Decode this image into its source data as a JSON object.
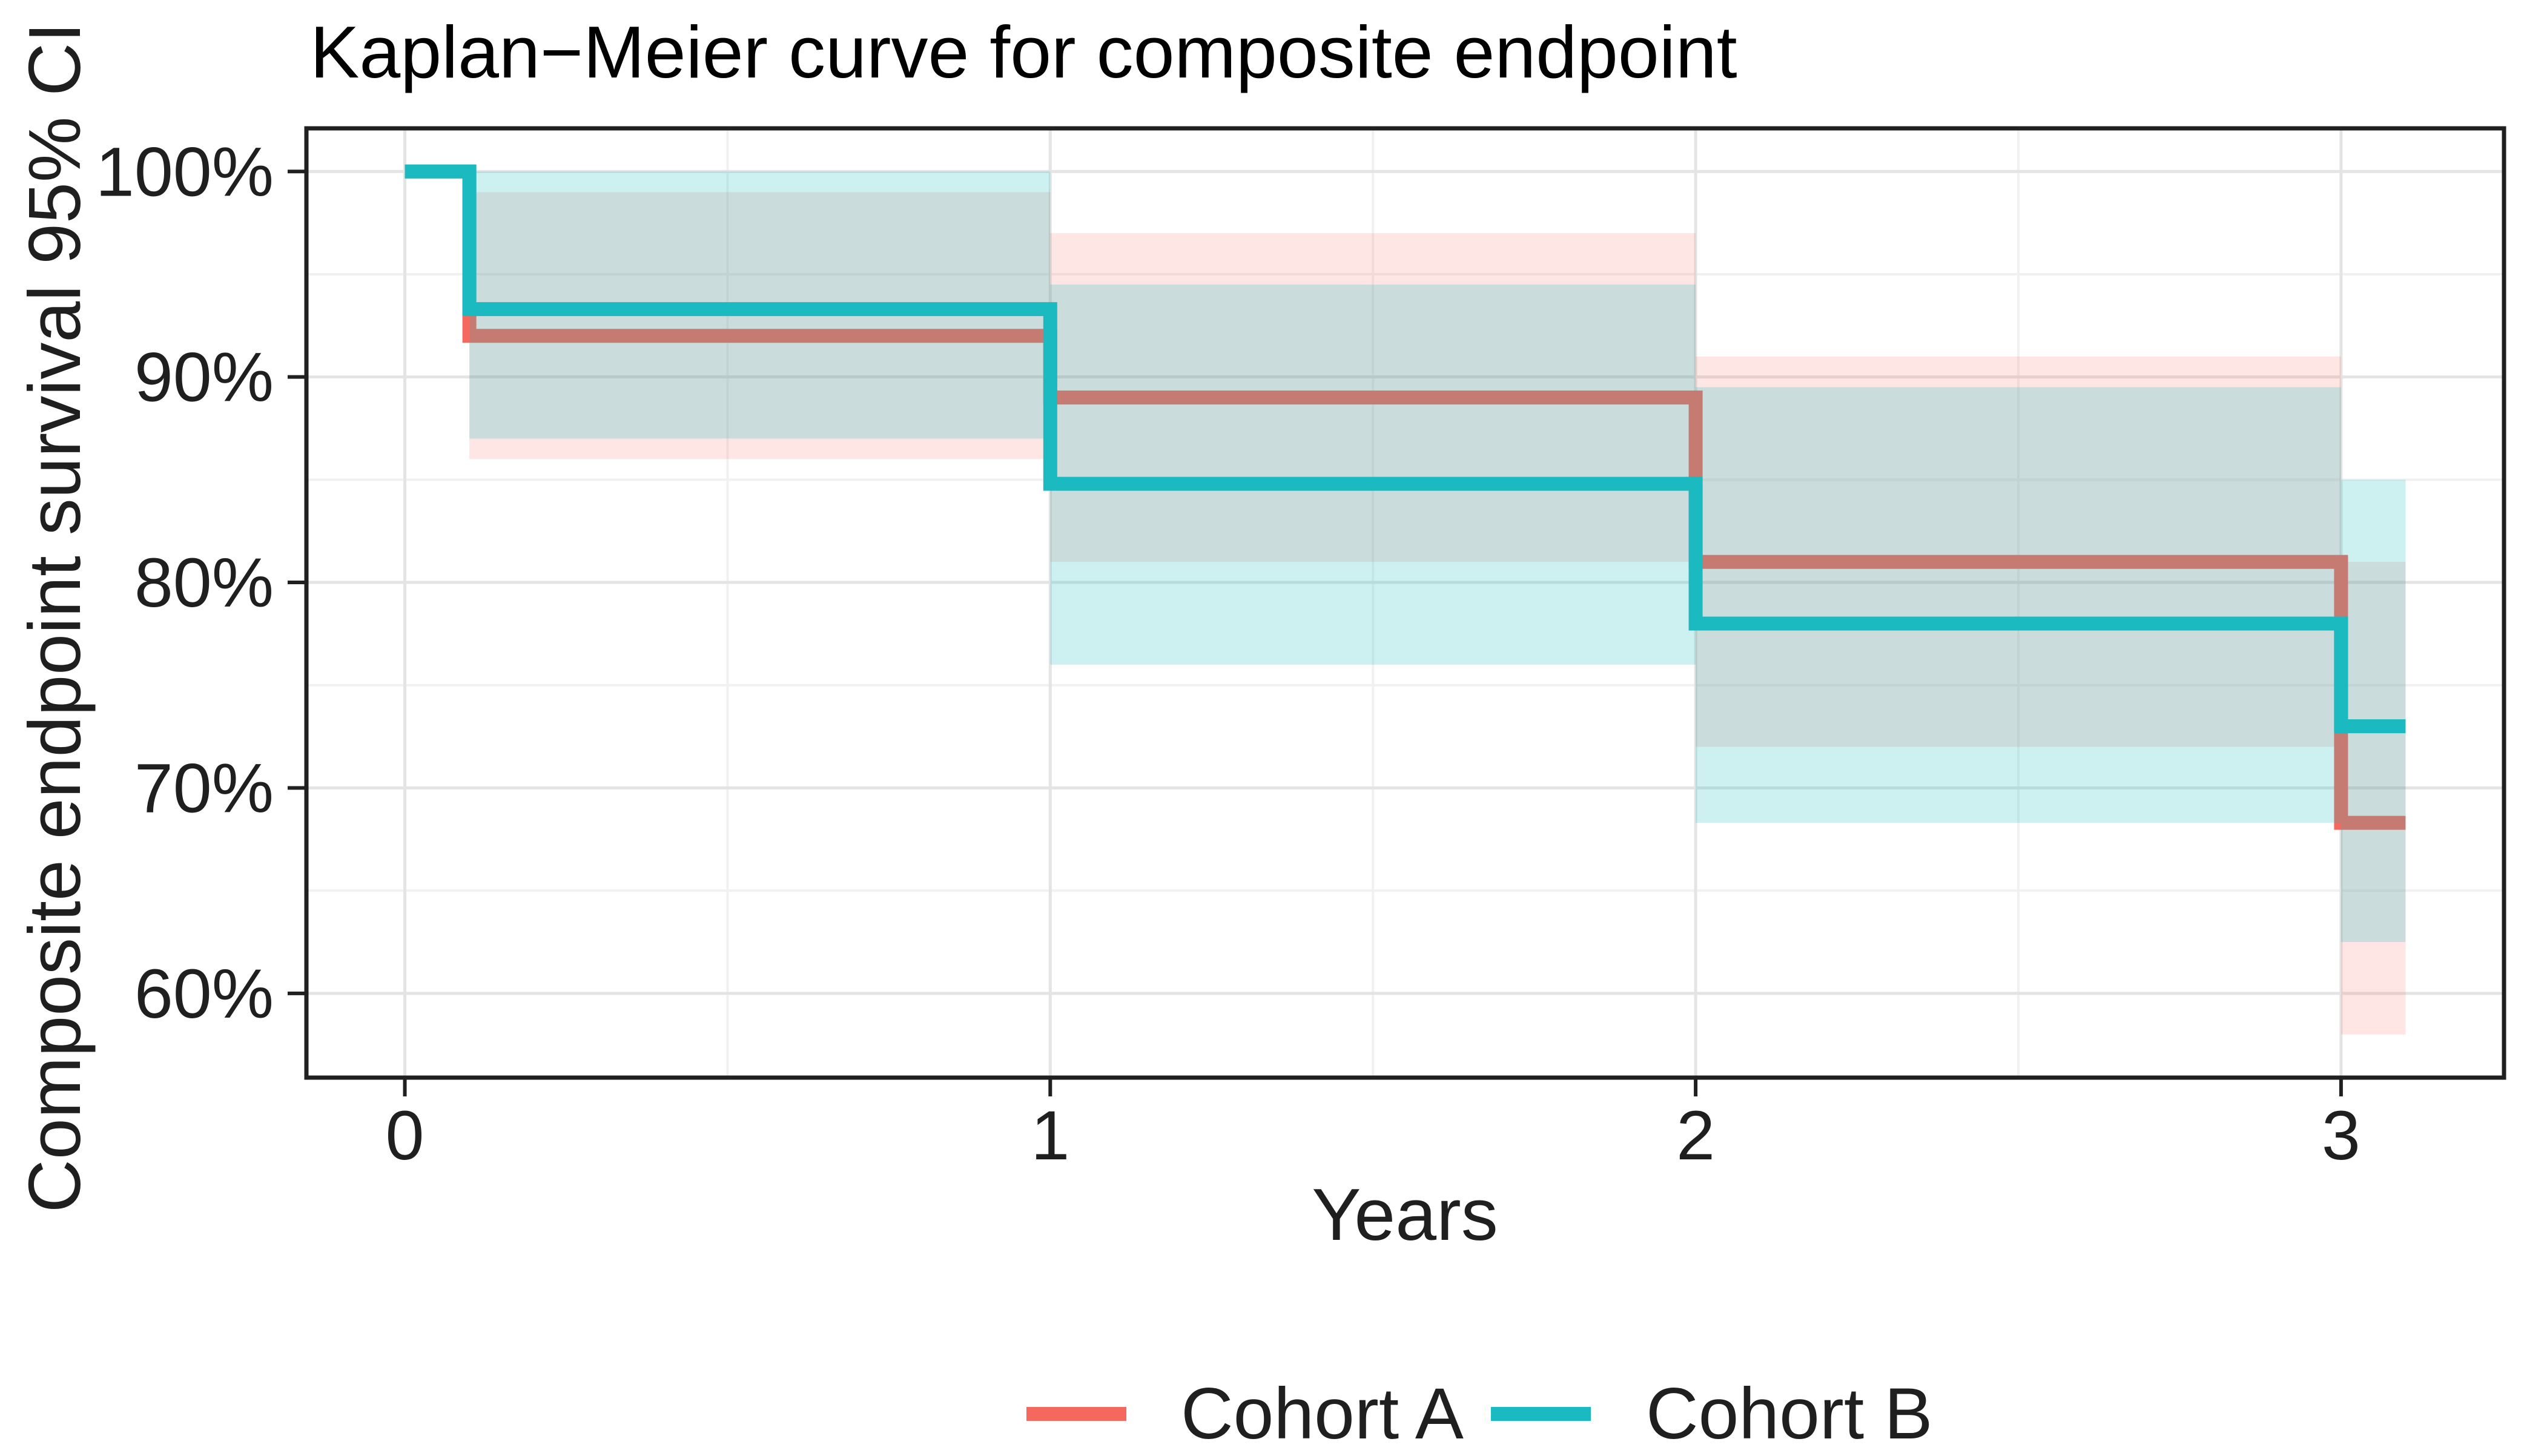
{
  "chart_data": {
    "type": "line",
    "subtype": "kaplan_meier_step",
    "title": "Kaplan−Meier curve for composite endpoint",
    "xlabel": "Years",
    "ylabel": "Composite endpoint survival 95% CI",
    "x_axis": {
      "ticks": [
        0,
        1,
        2,
        3
      ],
      "tick_labels": [
        "0",
        "1",
        "2",
        "3"
      ],
      "minor_ticks": [
        0.5,
        1.5,
        2.5
      ],
      "range": [
        -0.1525,
        3.2525
      ]
    },
    "y_axis": {
      "ticks": [
        100,
        90,
        80,
        70,
        60
      ],
      "tick_labels": [
        "100%",
        "90%",
        "80%",
        "70%",
        "60%"
      ],
      "minor_ticks": [
        95,
        85,
        75,
        65
      ],
      "range_pct": [
        55.9,
        102.1
      ]
    },
    "grid": "on",
    "legend": {
      "position": "bottom",
      "items": [
        "Cohort A",
        "Cohort B"
      ]
    },
    "series": [
      {
        "name": "Cohort A",
        "color": "#F5685D",
        "ci_fill_opacity": 0.17,
        "end_time": 3.1,
        "steps": [
          {
            "t": 0,
            "survival_pct": 100
          },
          {
            "t": 0.1,
            "survival_pct": 92
          },
          {
            "t": 1,
            "survival_pct": 89
          },
          {
            "t": 2,
            "survival_pct": 81
          },
          {
            "t": 3,
            "survival_pct": 68.3
          }
        ],
        "ci_segments": [
          {
            "t0": 0.1,
            "t1": 1,
            "lo": 86,
            "hi": 99
          },
          {
            "t0": 1,
            "t1": 2,
            "lo": 81,
            "hi": 97
          },
          {
            "t0": 2,
            "t1": 3,
            "lo": 72,
            "hi": 91
          },
          {
            "t0": 3,
            "t1": 3.1,
            "lo": 58,
            "hi": 81
          }
        ]
      },
      {
        "name": "Cohort B",
        "color": "#1ABAC0",
        "ci_fill_opacity": 0.22,
        "end_time": 3.1,
        "steps": [
          {
            "t": 0,
            "survival_pct": 100
          },
          {
            "t": 0.1,
            "survival_pct": 93.3
          },
          {
            "t": 1,
            "survival_pct": 84.8
          },
          {
            "t": 2,
            "survival_pct": 78
          },
          {
            "t": 3,
            "survival_pct": 73
          }
        ],
        "ci_segments": [
          {
            "t0": 0.1,
            "t1": 1,
            "lo": 87,
            "hi": 100
          },
          {
            "t0": 1,
            "t1": 2,
            "lo": 76,
            "hi": 94.5
          },
          {
            "t0": 2,
            "t1": 3,
            "lo": 68.3,
            "hi": 89.5
          },
          {
            "t0": 3,
            "t1": 3.1,
            "lo": 62.5,
            "hi": 85
          }
        ]
      }
    ],
    "style": {
      "grid_major_color": "#E4E4E4",
      "grid_minor_color": "#F1F1F1",
      "panel_border_color": "#202020",
      "tick_color": "#202020",
      "line_width": 23,
      "background": "#FFFFFF"
    }
  }
}
